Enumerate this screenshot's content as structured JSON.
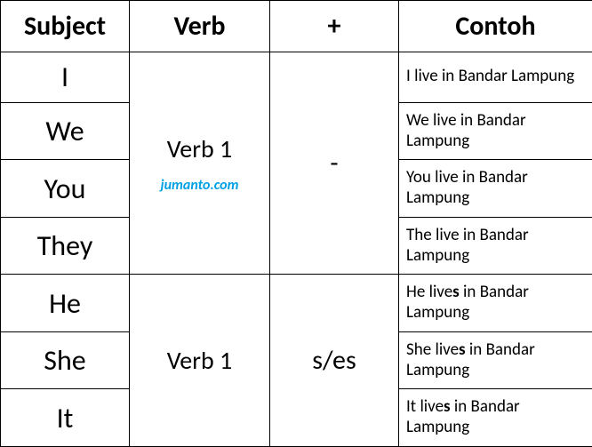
{
  "headers": {
    "subject": "Subject",
    "verb": "Verb",
    "plus": "+",
    "contoh": "Contoh"
  },
  "group1": {
    "subjects": [
      "I",
      "We",
      "You",
      "They"
    ],
    "verb": "Verb 1",
    "plus": "-",
    "examples": [
      "I live in Bandar Lampung",
      "We live in Bandar Lampung",
      "You live in Bandar Lampung",
      "The live in Bandar Lampung"
    ]
  },
  "group2": {
    "subjects": [
      "He",
      "She",
      "It"
    ],
    "verb": "Verb 1",
    "plus": "s/es",
    "examples_pre": [
      "He live",
      "She live",
      "It live"
    ],
    "examples_bold": "s",
    "examples_post": [
      " in Bandar Lampung",
      " in Bandar Lampung",
      " in Bandar Lampung"
    ]
  },
  "watermark": "jumanto.com",
  "colors": {
    "border": "#000000",
    "text": "#000000",
    "watermark": "#00a0e3",
    "background": "#ffffff"
  },
  "fonts": {
    "header_size": 30,
    "subject_size": 32,
    "verb_size": 28,
    "plus_size": 30,
    "example_size": 19,
    "watermark_size": 16
  }
}
